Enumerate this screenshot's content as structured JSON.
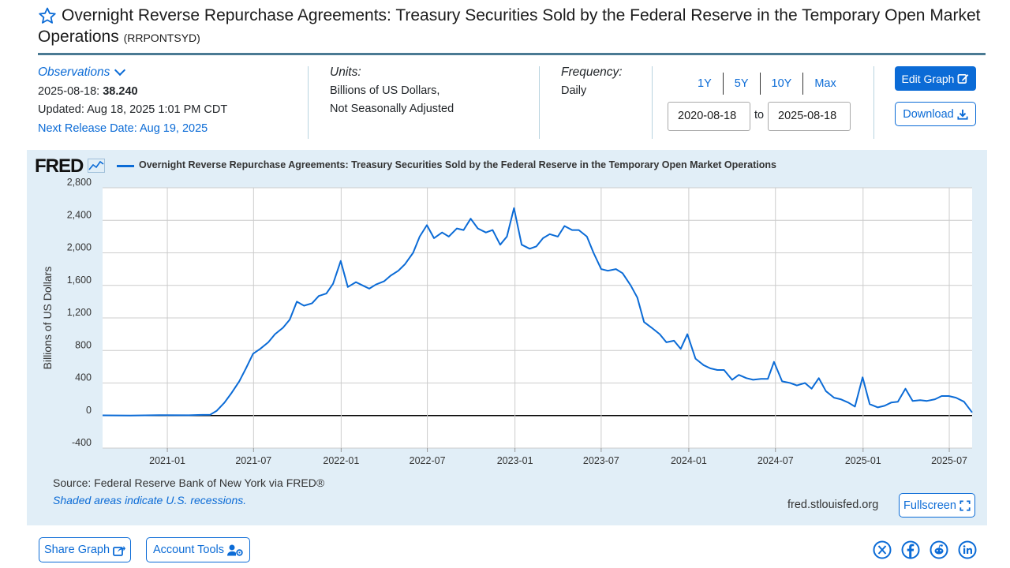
{
  "header": {
    "title": "Overnight Reverse Repurchase Agreements: Treasury Securities Sold by the Federal Reserve in the Temporary Open Market Operations",
    "series_id": "(RRPONTSYD)"
  },
  "observations": {
    "toggle_label": "Observations",
    "latest_date": "2025-08-18:",
    "latest_value": "38.240",
    "updated": "Updated: Aug 18, 2025 1:01 PM CDT",
    "next_release": "Next Release Date: Aug 19, 2025"
  },
  "units": {
    "label": "Units:",
    "line1": "Billions of US Dollars,",
    "line2": "Not Seasonally Adjusted"
  },
  "frequency": {
    "label": "Frequency:",
    "value": "Daily"
  },
  "range": {
    "links": [
      "1Y",
      "5Y",
      "10Y",
      "Max"
    ],
    "start": "2020-08-18",
    "to": "to",
    "end": "2025-08-18"
  },
  "buttons": {
    "edit_graph": "Edit Graph",
    "download": "Download",
    "fullscreen": "Fullscreen",
    "share_graph": "Share Graph",
    "account_tools": "Account Tools"
  },
  "footer": {
    "source": "Source: Federal Reserve Bank of New York via FRED®",
    "recessions": "Shaded areas indicate U.S. recessions.",
    "site": "fred.stlouisfed.org"
  },
  "logo_text": "FRED",
  "social_icons": [
    "x-icon",
    "facebook-icon",
    "reddit-icon",
    "linkedin-icon"
  ],
  "colors": {
    "accent": "#0b6bd6",
    "panel": "#e1eef7",
    "rule": "#4a7a93"
  },
  "chart_data": {
    "type": "line",
    "title": "Overnight Reverse Repurchase Agreements: Treasury Securities Sold by the Federal Reserve in the Temporary Open Market Operations",
    "ylabel": "Billions of US Dollars",
    "xlabel": "",
    "ylim": [
      -400,
      2800
    ],
    "y_ticks": [
      -400,
      0,
      400,
      800,
      1200,
      1600,
      2000,
      2400,
      2800
    ],
    "y_tick_labels": [
      "-400",
      "0",
      "400",
      "800",
      "1,200",
      "1,600",
      "2,000",
      "2,400",
      "2,800"
    ],
    "x_range": [
      "2020-08-18",
      "2025-08-18"
    ],
    "x_ticks": [
      "2021-01",
      "2021-07",
      "2022-01",
      "2022-07",
      "2023-01",
      "2023-07",
      "2024-01",
      "2024-07",
      "2025-01",
      "2025-07"
    ],
    "grid": true,
    "legend": "top-left",
    "series": [
      {
        "name": "Overnight Reverse Repurchase Agreements: Treasury Securities Sold by the Federal Reserve in the Temporary Open Market Operations",
        "color": "#0b6bd6",
        "x": [
          "2020-08-18",
          "2020-10-15",
          "2020-12-15",
          "2021-02-15",
          "2021-03-15",
          "2021-04-01",
          "2021-04-15",
          "2021-05-01",
          "2021-05-15",
          "2021-06-01",
          "2021-06-15",
          "2021-06-30",
          "2021-07-15",
          "2021-08-01",
          "2021-08-15",
          "2021-09-01",
          "2021-09-15",
          "2021-09-30",
          "2021-10-15",
          "2021-11-01",
          "2021-11-15",
          "2021-12-01",
          "2021-12-15",
          "2021-12-31",
          "2022-01-15",
          "2022-02-01",
          "2022-02-15",
          "2022-03-01",
          "2022-03-15",
          "2022-04-01",
          "2022-04-15",
          "2022-05-01",
          "2022-05-15",
          "2022-06-01",
          "2022-06-15",
          "2022-06-30",
          "2022-07-15",
          "2022-08-01",
          "2022-08-15",
          "2022-09-01",
          "2022-09-15",
          "2022-09-30",
          "2022-10-15",
          "2022-11-01",
          "2022-11-15",
          "2022-12-01",
          "2022-12-15",
          "2022-12-30",
          "2023-01-15",
          "2023-02-01",
          "2023-02-15",
          "2023-03-01",
          "2023-03-15",
          "2023-04-01",
          "2023-04-15",
          "2023-05-01",
          "2023-05-15",
          "2023-06-01",
          "2023-06-15",
          "2023-07-01",
          "2023-07-15",
          "2023-08-01",
          "2023-08-15",
          "2023-09-01",
          "2023-09-15",
          "2023-09-29",
          "2023-10-15",
          "2023-11-01",
          "2023-11-15",
          "2023-12-01",
          "2023-12-15",
          "2023-12-29",
          "2024-01-15",
          "2024-02-01",
          "2024-02-15",
          "2024-03-01",
          "2024-03-15",
          "2024-04-01",
          "2024-04-15",
          "2024-05-01",
          "2024-05-15",
          "2024-06-01",
          "2024-06-15",
          "2024-06-28",
          "2024-07-15",
          "2024-08-01",
          "2024-08-15",
          "2024-09-01",
          "2024-09-15",
          "2024-09-30",
          "2024-10-15",
          "2024-11-01",
          "2024-11-15",
          "2024-12-01",
          "2024-12-15",
          "2024-12-31",
          "2025-01-15",
          "2025-02-01",
          "2025-02-15",
          "2025-03-01",
          "2025-03-15",
          "2025-03-31",
          "2025-04-15",
          "2025-05-01",
          "2025-05-15",
          "2025-06-01",
          "2025-06-15",
          "2025-06-30",
          "2025-07-15",
          "2025-08-01",
          "2025-08-18"
        ],
        "values": [
          2,
          0,
          5,
          3,
          8,
          10,
          60,
          160,
          270,
          420,
          580,
          760,
          820,
          900,
          1000,
          1080,
          1180,
          1400,
          1350,
          1380,
          1470,
          1500,
          1620,
          1900,
          1580,
          1640,
          1600,
          1560,
          1610,
          1650,
          1720,
          1780,
          1860,
          2000,
          2200,
          2340,
          2180,
          2250,
          2200,
          2300,
          2280,
          2420,
          2300,
          2250,
          2280,
          2100,
          2200,
          2550,
          2100,
          2050,
          2080,
          2180,
          2230,
          2200,
          2330,
          2280,
          2280,
          2200,
          2000,
          1800,
          1780,
          1800,
          1750,
          1600,
          1450,
          1150,
          1080,
          1000,
          900,
          920,
          820,
          1000,
          700,
          620,
          580,
          560,
          560,
          440,
          500,
          460,
          440,
          450,
          450,
          660,
          420,
          400,
          370,
          400,
          330,
          460,
          300,
          220,
          200,
          160,
          110,
          470,
          140,
          100,
          120,
          160,
          170,
          330,
          180,
          190,
          180,
          200,
          240,
          240,
          220,
          170,
          38
        ]
      }
    ]
  }
}
